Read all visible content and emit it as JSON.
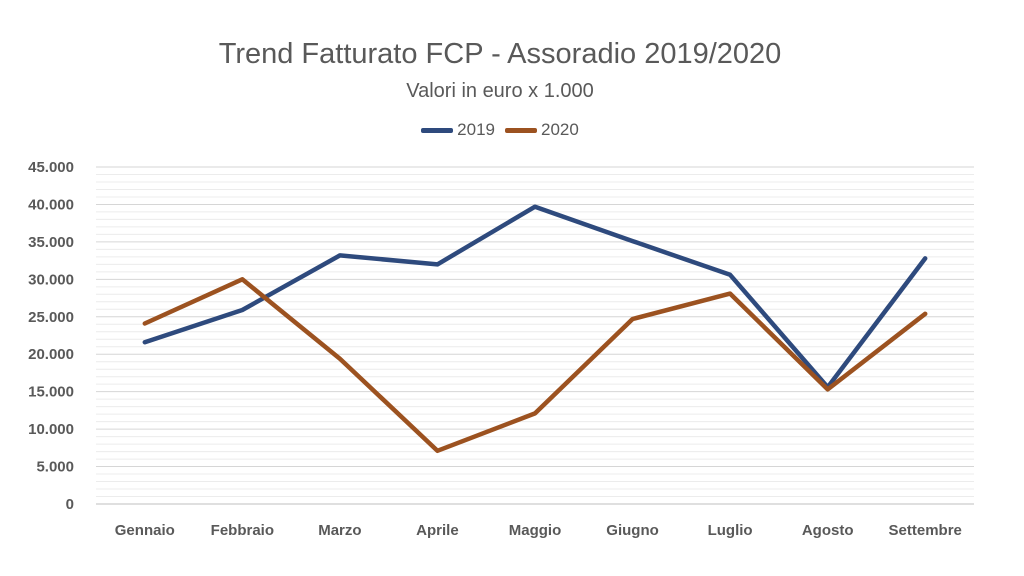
{
  "chart_data": {
    "type": "line",
    "title": "Trend Fatturato FCP - Assoradio 2019/2020",
    "subtitle": "Valori in euro x 1.000",
    "xlabel": "",
    "ylabel": "",
    "categories": [
      "Gennaio",
      "Febbraio",
      "Marzo",
      "Aprile",
      "Maggio",
      "Giugno",
      "Luglio",
      "Agosto",
      "Settembre"
    ],
    "ylim": [
      0,
      45000
    ],
    "yticks": [
      0,
      5000,
      10000,
      15000,
      20000,
      25000,
      30000,
      35000,
      40000,
      45000
    ],
    "ytick_labels": [
      "0",
      "5.000",
      "10.000",
      "15.000",
      "20.000",
      "25.000",
      "30.000",
      "35.000",
      "40.000",
      "45.000"
    ],
    "grid": true,
    "legend_position": "top",
    "series": [
      {
        "name": "2019",
        "color": "#2e4a7d",
        "values": [
          21600,
          25900,
          33200,
          32000,
          39700,
          35100,
          30600,
          15600,
          32800
        ]
      },
      {
        "name": "2020",
        "color": "#9c5220",
        "values": [
          24100,
          30000,
          19400,
          7100,
          12100,
          24700,
          28100,
          15300,
          25400
        ]
      }
    ]
  }
}
